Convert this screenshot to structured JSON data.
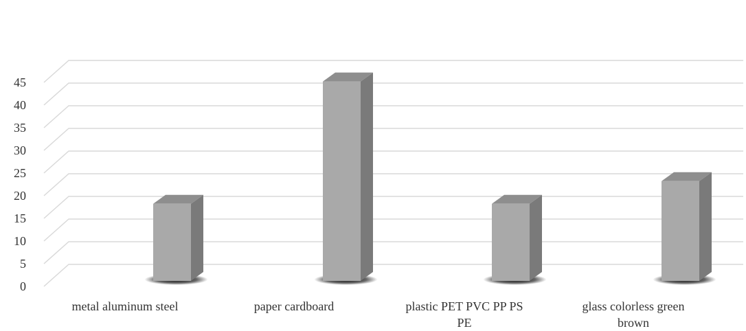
{
  "chart_data": {
    "type": "bar",
    "title": "",
    "xlabel": "",
    "ylabel": "",
    "categories": [
      [
        "metal aluminum steel"
      ],
      [
        "paper cardboard"
      ],
      [
        "plastic PET PVC PP PS",
        "PE"
      ],
      [
        "glass colorless green",
        "brown"
      ]
    ],
    "values": [
      17,
      44,
      17,
      22
    ],
    "ylim": [
      0,
      45
    ],
    "yticks": [
      0,
      5,
      10,
      15,
      20,
      25,
      30,
      35,
      40,
      45
    ],
    "grid": true,
    "legend": "none",
    "colors": {
      "bar_front": "#a9a9a9",
      "bar_side": "#7a7a7a",
      "bar_top": "#8e8e8e",
      "shadow": "#000000",
      "grid": "#d9d9d9"
    }
  }
}
